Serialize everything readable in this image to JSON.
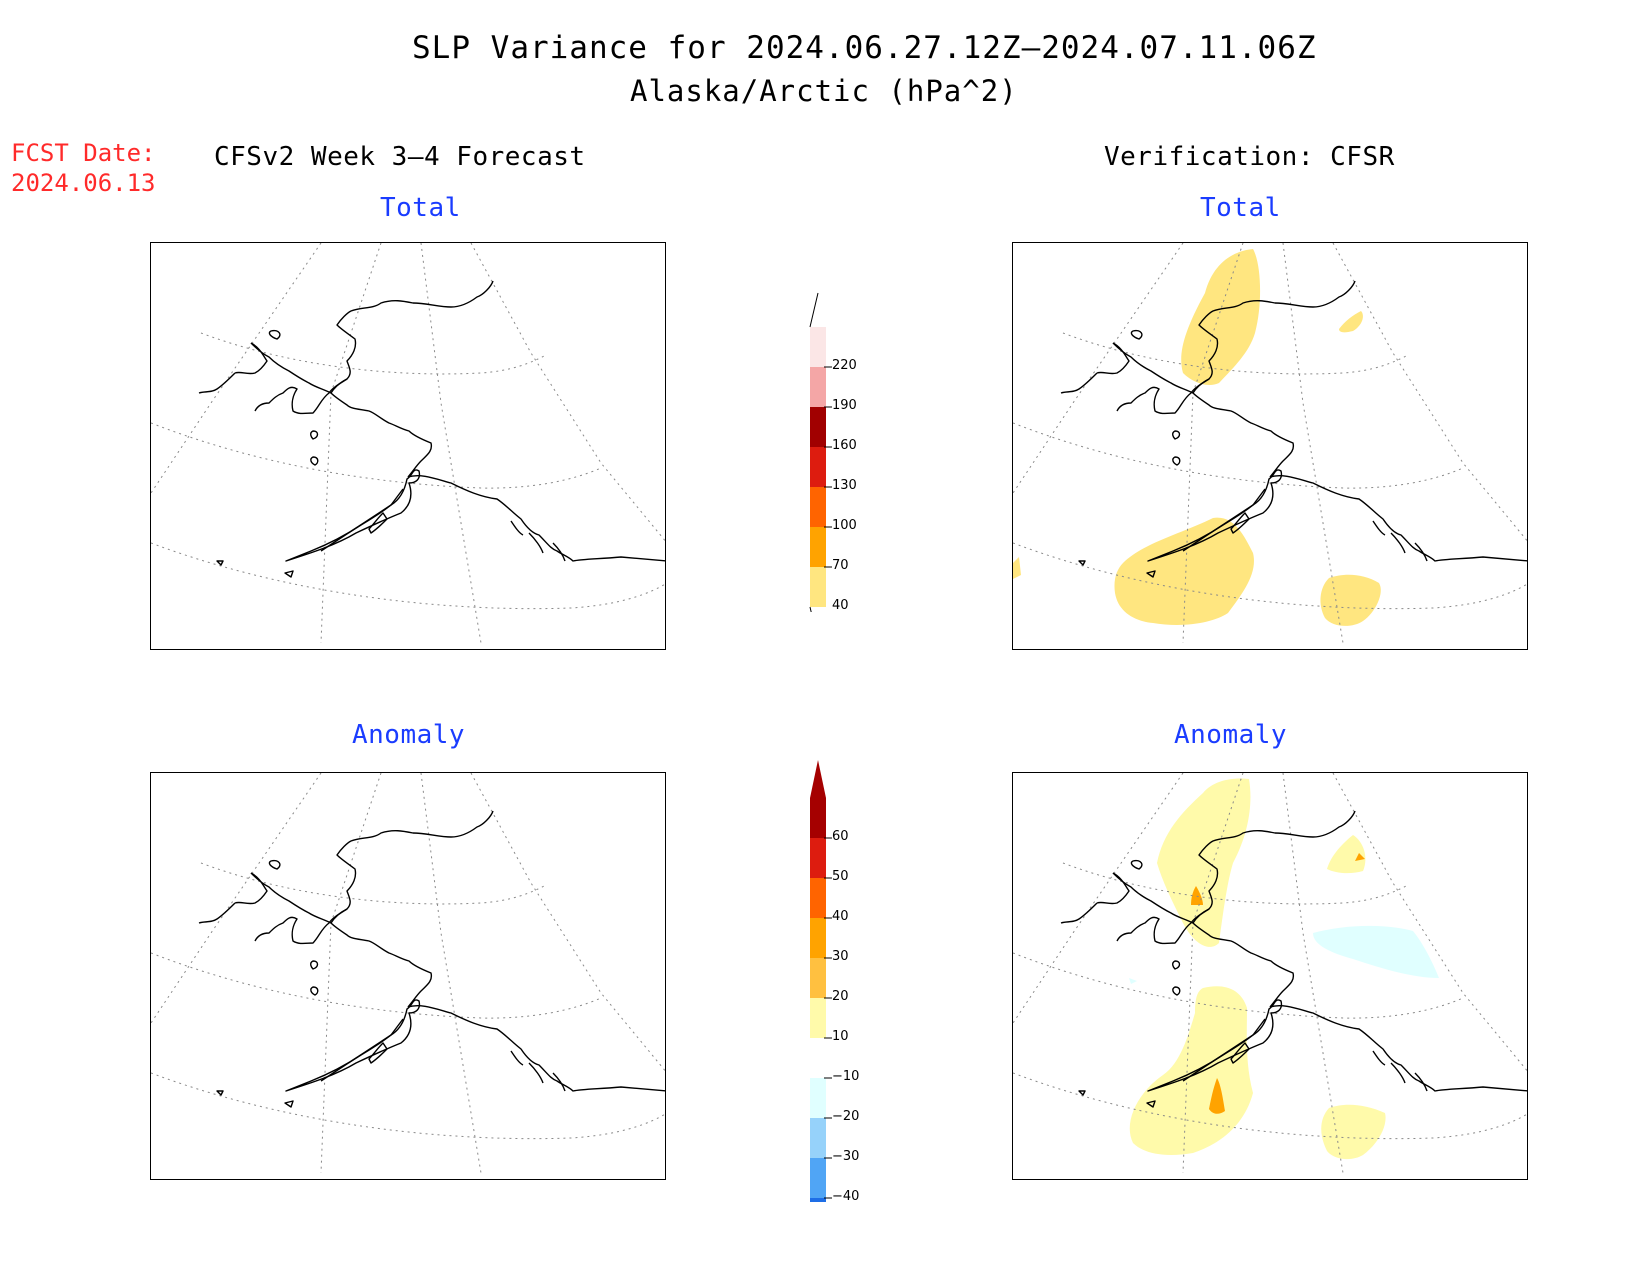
{
  "title": "SLP Variance for 2024.06.27.12Z—2024.07.11.06Z",
  "subtitle": "Alaska/Arctic (hPa^2)",
  "fcst_date": {
    "line1": "FCST Date:",
    "line2": "2024.06.13"
  },
  "left_header": "CFSv2 Week 3—4 Forecast",
  "right_header": "Verification: CFSR",
  "panels": {
    "tl_label": "Total",
    "tr_label": "Total",
    "bl_label": "Anomaly",
    "br_label": "Anomaly"
  },
  "colorbar_total": {
    "labels": [
      "220",
      "190",
      "160",
      "130",
      "100",
      "70",
      "40"
    ],
    "colors": [
      "#fbe6e6",
      "#f4a6a6",
      "#a10000",
      "#dd1c0f",
      "#ff6400",
      "#ffa300",
      "#ffe680"
    ]
  },
  "colorbar_anomaly": {
    "labels": [
      "60",
      "50",
      "40",
      "30",
      "20",
      "10",
      "−10",
      "−20",
      "−30",
      "−40"
    ],
    "colors": [
      "#a50000",
      "#dd1c0f",
      "#ff6400",
      "#ffa300",
      "#ffc040",
      "#fffaaa",
      "#ffffff",
      "#e0ffff",
      "#96d2fa",
      "#50a5f5",
      "#1e6ee6"
    ]
  },
  "colors": {
    "total_fill": "#ffe680",
    "anomaly_fill_10_20": "#fffaaa",
    "anomaly_fill_30": "#ffa300",
    "anomaly_fill_neg": "#e0ffff"
  }
}
